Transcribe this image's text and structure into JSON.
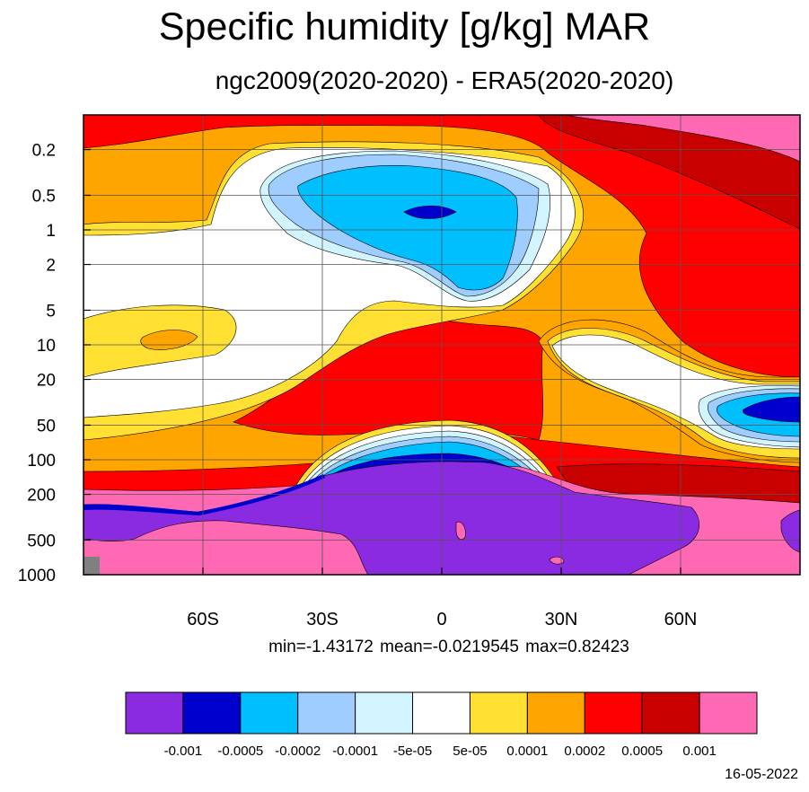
{
  "title": "Specific humidity [g/kg] MAR",
  "subtitle": "ngc2009(2020-2020) - ERA5(2020-2020)",
  "stats": "min=-1.43172   mean=-0.0219545   max=0.82423",
  "date": "16-05-2022",
  "chart_data": {
    "type": "contour",
    "variable": "Specific humidity difference [g/kg]",
    "x_ticks": [
      {
        "value": -60,
        "label": "60S"
      },
      {
        "value": -30,
        "label": "30S"
      },
      {
        "value": 0,
        "label": "0"
      },
      {
        "value": 30,
        "label": "30N"
      },
      {
        "value": 60,
        "label": "60N"
      }
    ],
    "y_ticks": [
      {
        "value": 0.2,
        "label": "0.2"
      },
      {
        "value": 0.5,
        "label": "0.5"
      },
      {
        "value": 1,
        "label": "1"
      },
      {
        "value": 2,
        "label": "2"
      },
      {
        "value": 5,
        "label": "5"
      },
      {
        "value": 10,
        "label": "10"
      },
      {
        "value": 20,
        "label": "20"
      },
      {
        "value": 50,
        "label": "50"
      },
      {
        "value": 100,
        "label": "100"
      },
      {
        "value": 200,
        "label": "200"
      },
      {
        "value": 500,
        "label": "500"
      },
      {
        "value": 1000,
        "label": "1000"
      }
    ],
    "y_scale": "log",
    "y_reversed": true,
    "xlim": [
      -90,
      90
    ],
    "ylim": [
      1000,
      0.1
    ],
    "grid": true,
    "colorbar": {
      "colors": [
        "#8a2be2",
        "#0000cd",
        "#00bfff",
        "#a0cdff",
        "#d1f4ff",
        "#ffffff",
        "#ffe033",
        "#ffa500",
        "#ff0000",
        "#c80000",
        "#ff69b4"
      ],
      "labels": [
        "-0.001",
        "-0.0005",
        "-0.0002",
        "-0.0001",
        "-5e-05",
        "5e-05",
        "0.0001",
        "0.0002",
        "0.0005",
        "0.001"
      ]
    },
    "stats": {
      "min": -1.43172,
      "mean": -0.0219545,
      "max": 0.82423
    }
  }
}
